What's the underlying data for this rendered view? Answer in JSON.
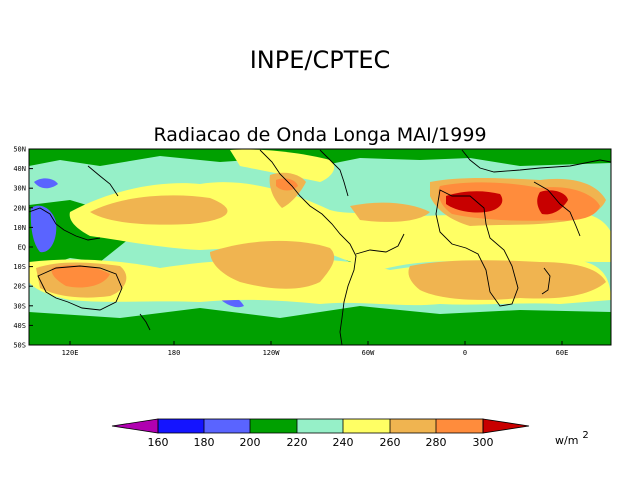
{
  "header": {
    "title": "INPE/CPTEC"
  },
  "map": {
    "title": "Radiacao de Onda Longa MAI/1999",
    "lat_labels": [
      "50N",
      "40N",
      "30N",
      "20N",
      "10N",
      "EQ",
      "10S",
      "20S",
      "30S",
      "40S",
      "50S"
    ],
    "lon_labels": [
      "120E",
      "180",
      "120W",
      "60W",
      "0",
      "60E"
    ]
  },
  "legend": {
    "levels": [
      "160",
      "180",
      "200",
      "220",
      "240",
      "260",
      "280",
      "300"
    ],
    "colors": [
      "#b000b0",
      "#1414ff",
      "#5a64ff",
      "#00a000",
      "#96f0c8",
      "#ffff64",
      "#f0b450",
      "#ff8c3c",
      "#c80000"
    ],
    "unit": "w/m",
    "unit_exp": "2"
  }
}
